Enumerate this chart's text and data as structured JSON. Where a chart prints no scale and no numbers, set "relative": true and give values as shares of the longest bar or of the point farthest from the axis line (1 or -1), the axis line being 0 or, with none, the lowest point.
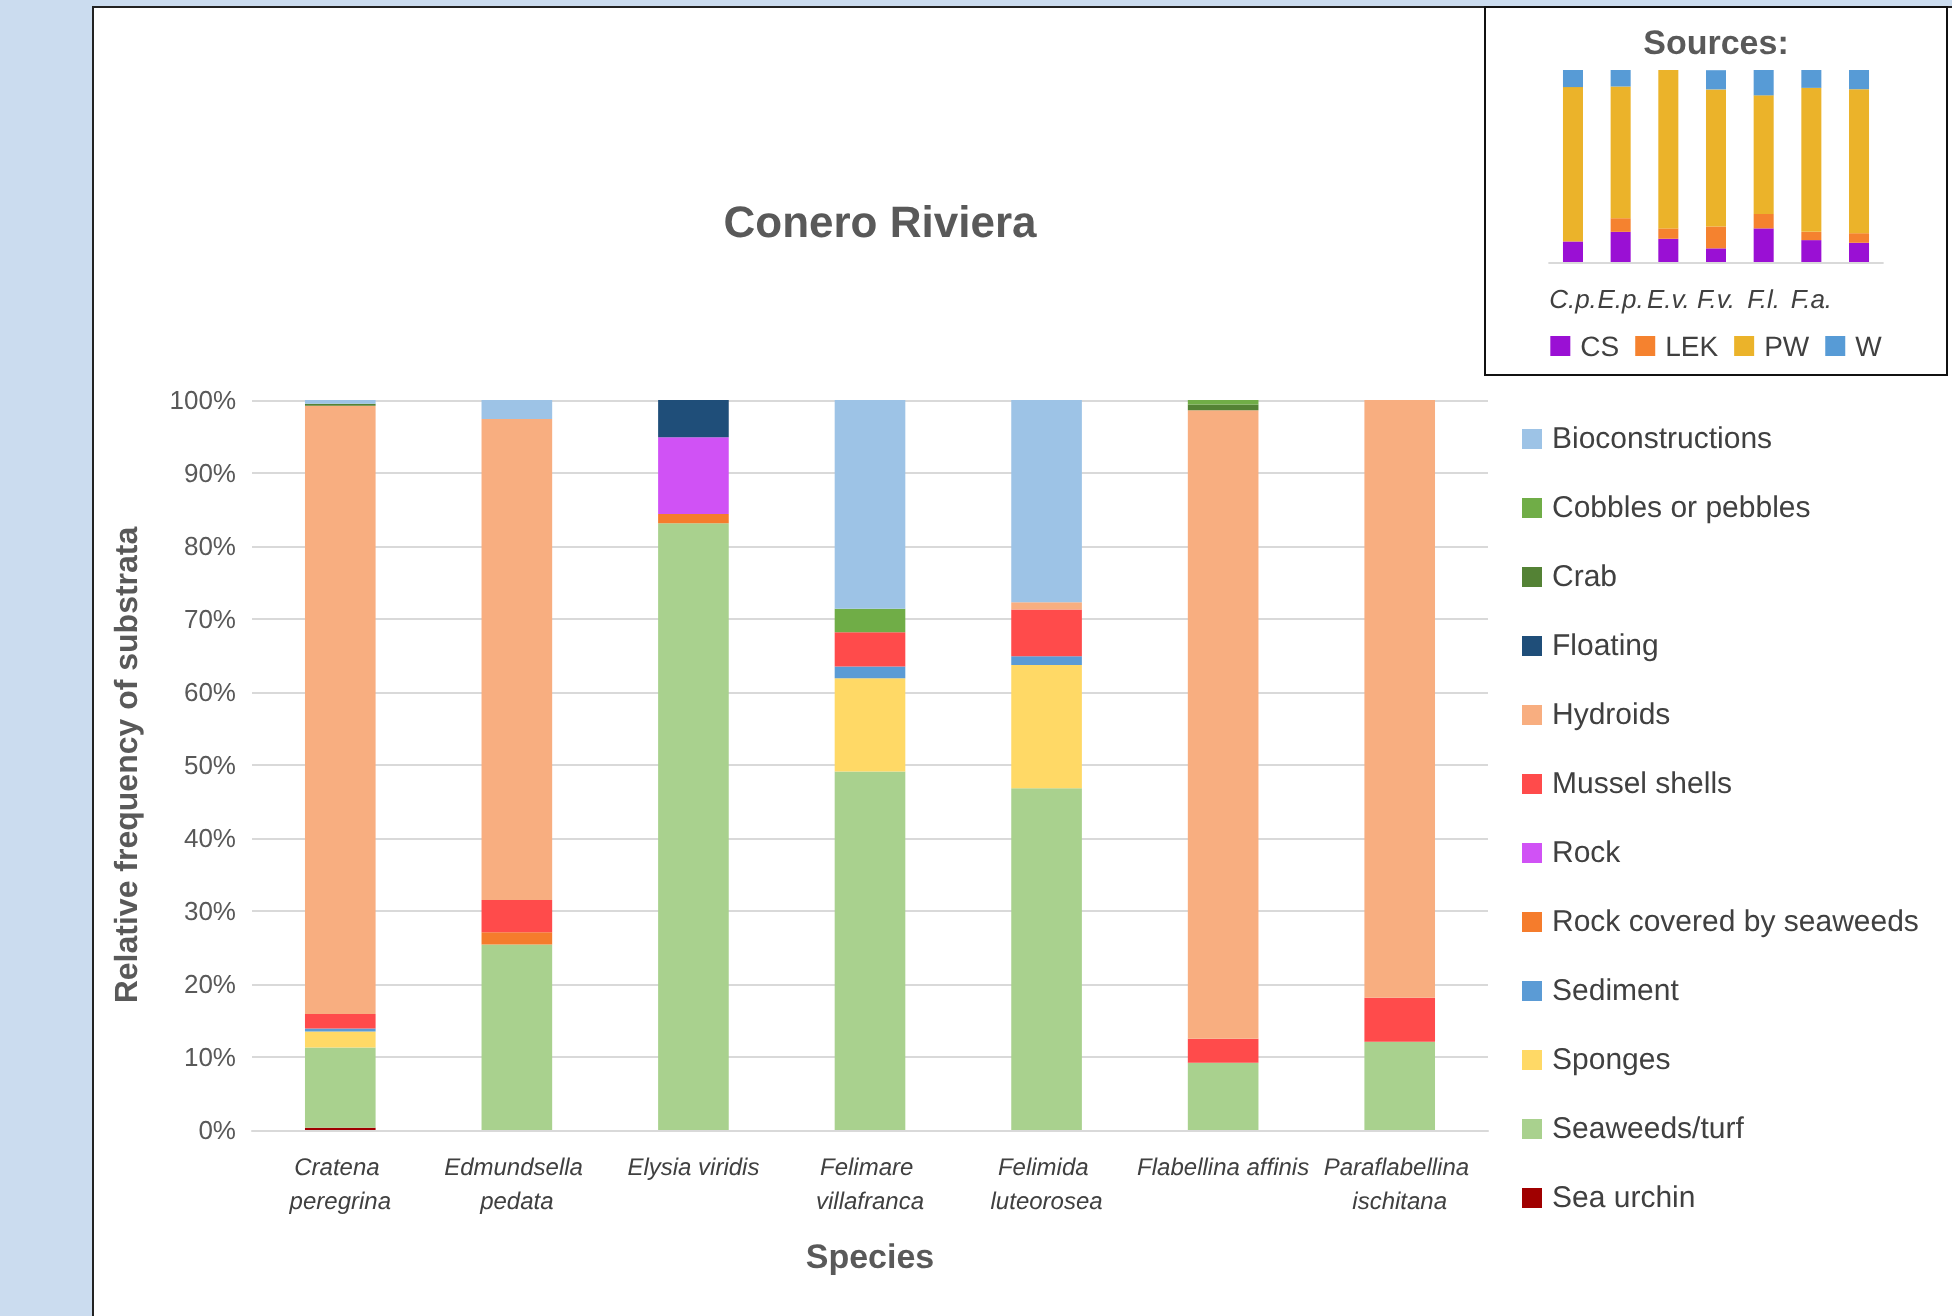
{
  "chart_data": [
    {
      "type": "bar",
      "title": "Conero Riviera",
      "xlabel": "Species",
      "ylabel": "Relative frequency of substrata",
      "stacked": true,
      "grid": "y",
      "legend": "right",
      "categories": [
        "Cratena peregrina",
        "Edmundsella pedata",
        "Elysia viridis",
        "Felimare villafranca",
        "Felimida luteorosea",
        "Flabellina affinis",
        "Paraflabellina ischitana"
      ],
      "ylim": [
        0,
        100
      ],
      "yticks": [
        {
          "value": 0,
          "label": "0%"
        },
        {
          "value": 10,
          "label": "10%"
        },
        {
          "value": 20,
          "label": "20%"
        },
        {
          "value": 30,
          "label": "30%"
        },
        {
          "value": 40,
          "label": "40%"
        },
        {
          "value": 50,
          "label": "50%"
        },
        {
          "value": 60,
          "label": "60%"
        },
        {
          "value": 70,
          "label": "70%"
        },
        {
          "value": 80,
          "label": "80%"
        },
        {
          "value": 90,
          "label": "90%"
        },
        {
          "value": 100,
          "label": "100%"
        }
      ],
      "series": [
        {
          "name": "Sea urchin",
          "color": "#a00000",
          "values": [
            0.3,
            0,
            0,
            0,
            0,
            0,
            0
          ]
        },
        {
          "name": "Seaweeds/turf",
          "color": "#a9d18e",
          "values": [
            11,
            25.4,
            83.1,
            49.1,
            46.8,
            9.2,
            12.1
          ]
        },
        {
          "name": "Sponges",
          "color": "#ffd966",
          "values": [
            2.2,
            0,
            0,
            12.8,
            16.9,
            0,
            0
          ]
        },
        {
          "name": "Sediment",
          "color": "#5b9bd5",
          "values": [
            0.4,
            0,
            0,
            1.6,
            1.2,
            0,
            0
          ]
        },
        {
          "name": "Rock covered by seaweeds",
          "color": "#f57c2c",
          "values": [
            0,
            1.7,
            1.3,
            0,
            0,
            0,
            0
          ]
        },
        {
          "name": "Rock",
          "color": "#d052f5",
          "values": [
            0,
            0,
            10.5,
            0,
            0,
            0,
            0
          ]
        },
        {
          "name": "Mussel shells",
          "color": "#ff4b4b",
          "values": [
            2,
            4.4,
            0,
            4.7,
            6.4,
            3.3,
            6
          ]
        },
        {
          "name": "Hydroids",
          "color": "#f8ae80",
          "values": [
            83.3,
            65.9,
            0,
            0,
            1,
            86.1,
            81.9
          ]
        },
        {
          "name": "Floating",
          "color": "#1f4e79",
          "values": [
            0,
            0,
            5.1,
            0,
            0,
            0,
            0
          ]
        },
        {
          "name": "Crab",
          "color": "#548235",
          "values": [
            0.3,
            0,
            0,
            0,
            0,
            0.8,
            0
          ]
        },
        {
          "name": "Cobbles or pebbles",
          "color": "#70ad47",
          "values": [
            0,
            0,
            0,
            3.2,
            0,
            0.6,
            0
          ]
        },
        {
          "name": "Bioconstructions",
          "color": "#9dc3e6",
          "values": [
            0.5,
            2.6,
            0,
            28.6,
            27.7,
            0,
            0
          ]
        }
      ]
    },
    {
      "type": "bar",
      "title": "Sources:",
      "stacked": true,
      "relative": true,
      "legend": "bottom",
      "categories": [
        "C.p.",
        "E.p.",
        "E.v.",
        "F.v.",
        "F.l.",
        "F.a.",
        null
      ],
      "series": [
        {
          "name": "CS",
          "color": "#9a10d4",
          "values": [
            0.107,
            0.157,
            0.121,
            0.071,
            0.175,
            0.114,
            0.1
          ]
        },
        {
          "name": "LEK",
          "color": "#f5822f",
          "values": [
            0,
            0.071,
            0.054,
            0.114,
            0.075,
            0.043,
            0.05
          ]
        },
        {
          "name": "PW",
          "color": "#ebb32a",
          "values": [
            0.804,
            0.686,
            0.825,
            0.714,
            0.618,
            0.75,
            0.75
          ]
        },
        {
          "name": "W",
          "color": "#579bd6",
          "values": [
            0.089,
            0.086,
            0,
            0.1,
            0.132,
            0.093,
            0.1
          ]
        }
      ]
    }
  ]
}
